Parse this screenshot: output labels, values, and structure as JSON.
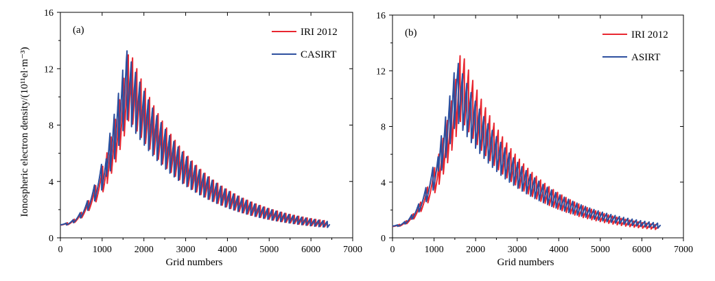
{
  "chart_data": [
    {
      "type": "line",
      "panel_label": "(a)",
      "xlabel": "Grid numbers",
      "ylabel": "Ionospheric electron density/(10¹¹el·m⁻³)",
      "xlim": [
        0,
        7000
      ],
      "ylim": [
        0,
        16
      ],
      "xticks": [
        0,
        1000,
        2000,
        3000,
        4000,
        5000,
        6000,
        7000
      ],
      "yticks": [
        0,
        4,
        8,
        12,
        16
      ],
      "legend_position": "top-right",
      "series": [
        {
          "name": "IRI 2012",
          "color": "#e8262f",
          "profile": {
            "n_points": 6400,
            "start": 1.0,
            "peak_grid": 1650,
            "peak_value": 13.7,
            "end": 0.6,
            "period": 102,
            "dip_fraction": 0.38,
            "phase": 0
          }
        },
        {
          "name": "CASIRT",
          "color": "#2c4f9e",
          "profile": {
            "n_points": 6450,
            "start": 1.0,
            "peak_grid": 1580,
            "peak_value": 13.7,
            "end": 0.55,
            "period": 102,
            "dip_fraction": 0.38,
            "phase": 30
          }
        }
      ]
    },
    {
      "type": "line",
      "panel_label": "(b)",
      "xlabel": "Grid numbers",
      "ylabel": "",
      "xlim": [
        0,
        7000
      ],
      "ylim": [
        0,
        16
      ],
      "xticks": [
        0,
        1000,
        2000,
        3000,
        4000,
        5000,
        6000,
        7000
      ],
      "yticks": [
        0,
        4,
        8,
        12,
        16
      ],
      "legend_position": "top-right",
      "series": [
        {
          "name": "IRI 2012",
          "color": "#e8262f",
          "profile": {
            "n_points": 6400,
            "start": 0.9,
            "peak_grid": 1650,
            "peak_value": 13.8,
            "end": 0.3,
            "period": 102,
            "dip_fraction": 0.38,
            "phase": 0
          }
        },
        {
          "name": "ASIRT",
          "color": "#2c4f9e",
          "profile": {
            "n_points": 6450,
            "start": 0.9,
            "peak_grid": 1540,
            "peak_value": 13.0,
            "end": 0.45,
            "period": 102,
            "dip_fraction": 0.36,
            "phase": 45
          }
        }
      ]
    }
  ]
}
